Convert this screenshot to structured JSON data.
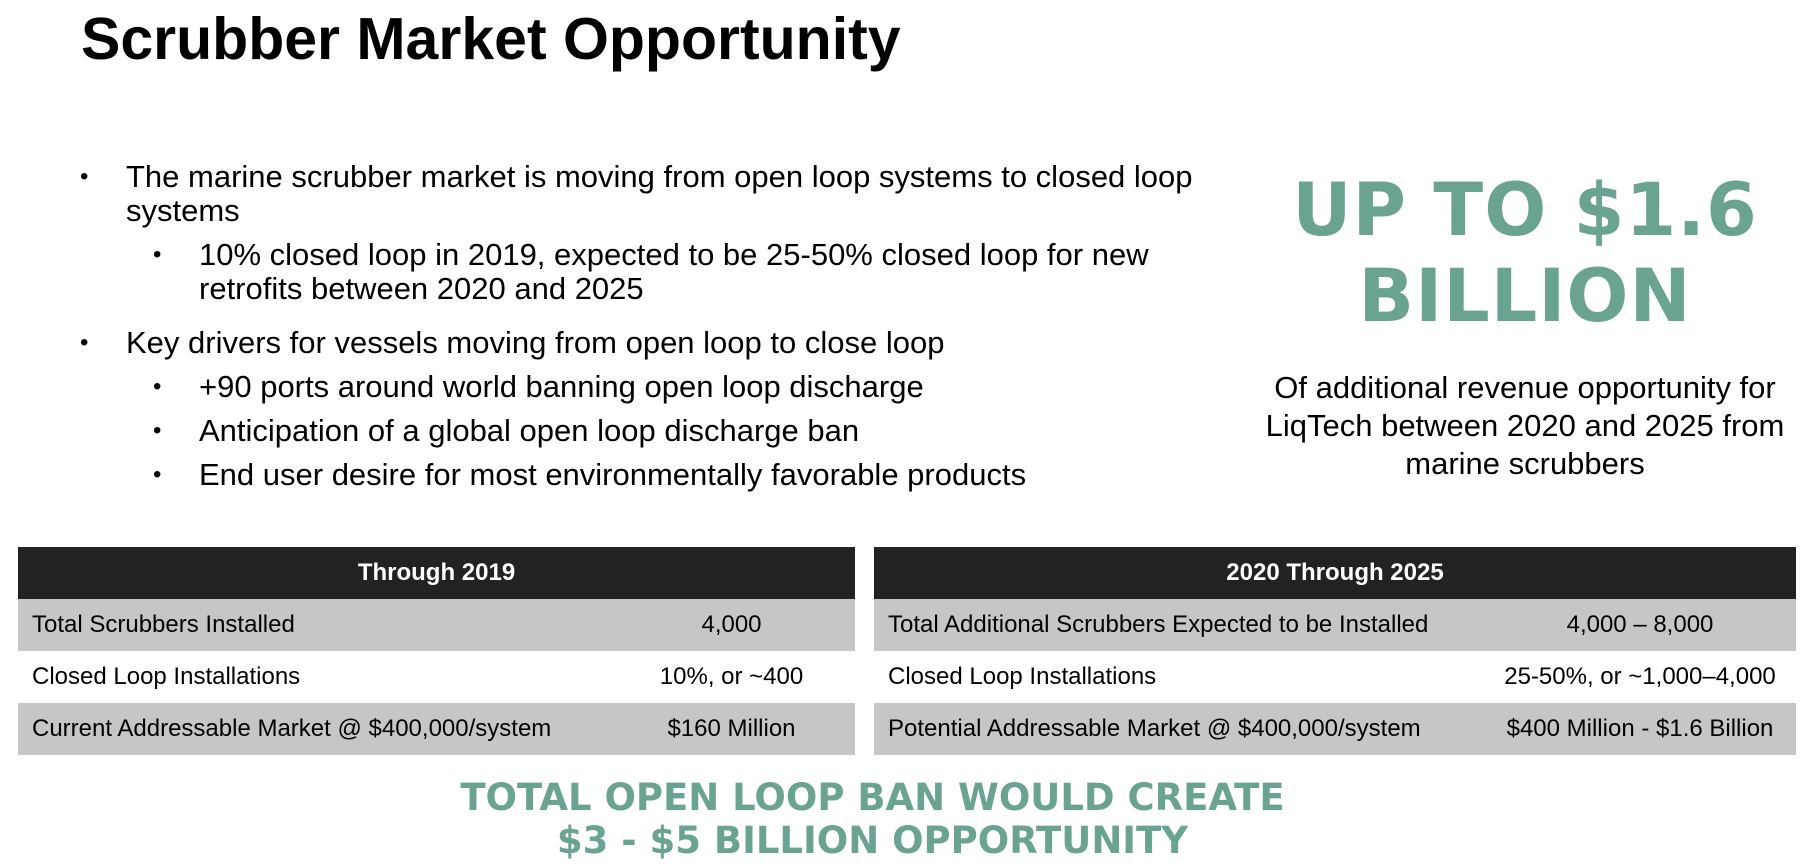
{
  "title": "Scrubber Market Opportunity",
  "bullets": {
    "b1": "The marine scrubber market is moving from open loop systems to closed loop systems",
    "b1_sub": "10% closed loop in 2019, expected to be 25-50% closed loop for new retrofits between 2020 and 2025",
    "b2": "Key drivers for vessels moving from open loop to close loop",
    "b2_sub1": "+90 ports around world banning open loop discharge",
    "b2_sub2": "Anticipation of a global open loop discharge ban",
    "b2_sub3": "End user desire for most environmentally favorable products"
  },
  "highlight": {
    "line1": "UP TO $1.6",
    "line2": "BILLION",
    "sub": "Of additional revenue opportunity for LiqTech between 2020 and 2025 from marine scrubbers",
    "color": "#6aa491"
  },
  "table_left": {
    "header": "Through 2019",
    "rows": [
      {
        "label": "Total Scrubbers Installed",
        "value": "4,000"
      },
      {
        "label": "Closed Loop Installations",
        "value": "10%, or ~400"
      },
      {
        "label": "Current Addressable Market @ $400,000/system",
        "value": "$160 Million"
      }
    ]
  },
  "table_right": {
    "header": "2020 Through 2025",
    "rows": [
      {
        "label": "Total Additional Scrubbers Expected to be Installed",
        "value": "4,000 – 8,000"
      },
      {
        "label": "Closed Loop Installations",
        "value": "25-50%, or ~1,000–4,000"
      },
      {
        "label": "Potential Addressable Market @ $400,000/system",
        "value": "$400 Million - $1.6 Billion"
      }
    ]
  },
  "footer": {
    "line1": "TOTAL OPEN LOOP BAN WOULD CREATE",
    "line2": "$3 - $5 BILLION OPPORTUNITY"
  }
}
